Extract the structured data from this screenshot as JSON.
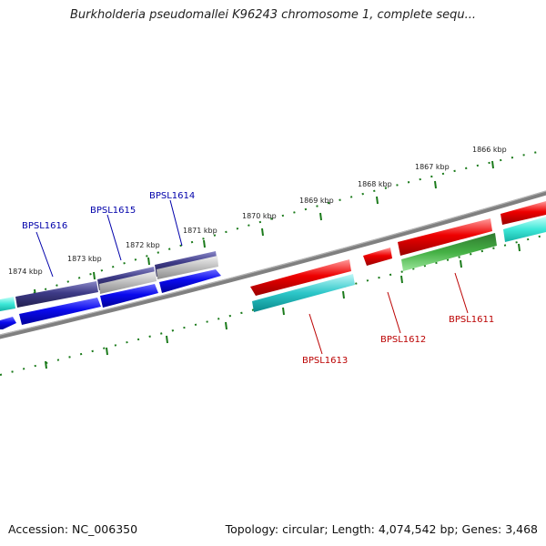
{
  "title": "Burkholderia pseudomallei K96243 chromosome 1, complete sequ...",
  "footer": {
    "accession": "Accession: NC_006350",
    "stats": "Topology: circular; Length: 4,074,542 bp; Genes: 3,468"
  },
  "kbp_labels": [
    "1866 kbp",
    "1867 kbp",
    "1868 kbp",
    "1869 kbp",
    "1870 kbp",
    "1871 kbp",
    "1872 kbp",
    "1873 kbp",
    "1874 kbp"
  ],
  "gene_labels": {
    "BPSL1616": "BPSL1616",
    "BPSL1615": "BPSL1615",
    "BPSL1614": "BPSL1614",
    "BPSL1613": "BPSL1613",
    "BPSL1612": "BPSL1612",
    "BPSL1611": "BPSL1611"
  },
  "colors": {
    "forward_gene_label": "#0000aa",
    "reverse_gene_label": "#bb0000",
    "tick_green": "#1a7a1a",
    "backbone": "#808080"
  }
}
